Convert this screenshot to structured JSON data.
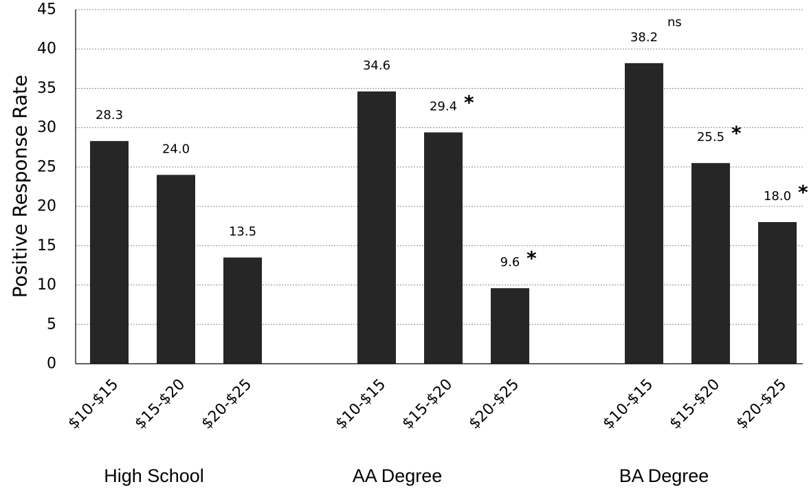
{
  "chart_data": {
    "type": "bar",
    "ylabel": "Positive Response Rate",
    "ylim": [
      0,
      45
    ],
    "yticks": [
      0,
      5,
      10,
      15,
      20,
      25,
      30,
      35,
      40,
      45
    ],
    "grid": true,
    "bar_color": "#262626",
    "groups": [
      {
        "name": "High School",
        "bars": [
          {
            "category": "$10-$15",
            "value": 28.3,
            "label": "28.3",
            "sig": ""
          },
          {
            "category": "$15-$20",
            "value": 24.0,
            "label": "24.0",
            "sig": ""
          },
          {
            "category": "$20-$25",
            "value": 13.5,
            "label": "13.5",
            "sig": ""
          }
        ]
      },
      {
        "name": "AA Degree",
        "bars": [
          {
            "category": "$10-$15",
            "value": 34.6,
            "label": "34.6",
            "sig": ""
          },
          {
            "category": "$15-$20",
            "value": 29.4,
            "label": "29.4",
            "sig": "*"
          },
          {
            "category": "$20-$25",
            "value": 9.6,
            "label": "9.6",
            "sig": "*"
          }
        ]
      },
      {
        "name": "BA Degree",
        "bars": [
          {
            "category": "$10-$15",
            "value": 38.2,
            "label": "38.2",
            "sig": "ns"
          },
          {
            "category": "$15-$20",
            "value": 25.5,
            "label": "25.5",
            "sig": "*"
          },
          {
            "category": "$20-$25",
            "value": 18.0,
            "label": "18.0",
            "sig": "*"
          }
        ]
      }
    ]
  }
}
